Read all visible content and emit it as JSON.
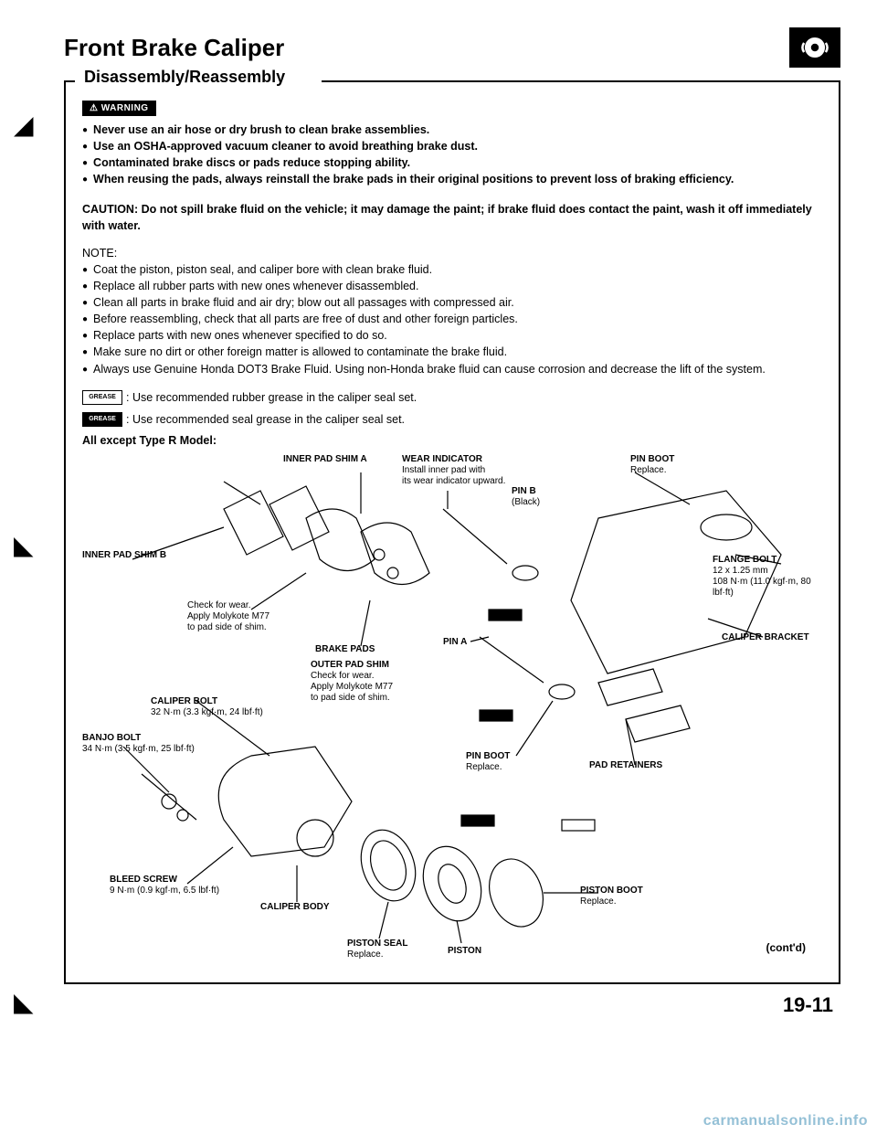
{
  "header": {
    "title": "Front Brake Caliper",
    "section_label": "Disassembly/Reassembly"
  },
  "warning": {
    "tag": "⚠ WARNING",
    "items": [
      "Never use an air hose or dry brush to clean brake assemblies.",
      "Use an OSHA-approved vacuum cleaner to avoid breathing brake dust.",
      "Contaminated brake discs or pads reduce stopping ability.",
      "When reusing the pads, always reinstall the brake pads in their original positions to prevent loss of braking efficiency."
    ]
  },
  "caution": "CAUTION: Do not spill brake fluid on the vehicle; it may damage the paint; if brake fluid does contact the paint, wash it off immediately with water.",
  "note_label": "NOTE:",
  "notes": [
    "Coat the piston, piston seal, and caliper bore with clean brake fluid.",
    "Replace all rubber parts with new ones whenever disassembled.",
    "Clean all parts in brake fluid and air dry; blow out all passages with compressed air.",
    "Before reassembling, check that all parts are free of dust and other foreign particles.",
    "Replace parts with new ones whenever specified to do so.",
    "Make sure no dirt or other foreign matter is allowed to contaminate the brake fluid.",
    "Always use Genuine Honda DOT3 Brake Fluid. Using non-Honda brake fluid can cause corrosion and decrease the lift of the system."
  ],
  "grease": {
    "rubber": ": Use recommended rubber grease in the caliper seal set.",
    "seal": ": Use recommended seal grease in the caliper seal set."
  },
  "model_label": "All except Type R Model:",
  "diagram": {
    "labels": {
      "inner_pad_shim_a": "INNER PAD SHIM A",
      "inner_pad_shim_b": "INNER PAD SHIM B",
      "wear_indicator": "WEAR INDICATOR",
      "wear_indicator_sub": "Install inner pad with\nits wear indicator upward.",
      "pin_b": "PIN B",
      "pin_b_sub": "(Black)",
      "pin_boot_top": "PIN BOOT",
      "pin_boot_top_sub": "Replace.",
      "flange_bolt": "FLANGE BOLT",
      "flange_bolt_sub": "12 x 1.25 mm\n108 N·m (11.0 kgf·m, 80 lbf·ft)",
      "caliper_bracket": "CALIPER BRACKET",
      "check_wear": "Check for wear.\nApply Molykote M77\nto pad side of shim.",
      "brake_pads": "BRAKE PADS",
      "pin_a": "PIN A",
      "outer_pad_shim": "OUTER PAD SHIM",
      "outer_pad_shim_sub": "Check for wear.\nApply Molykote M77\nto pad side of shim.",
      "caliper_bolt": "CALIPER BOLT",
      "caliper_bolt_sub": "32 N·m (3.3 kgf·m, 24 lbf·ft)",
      "banjo_bolt": "BANJO BOLT",
      "banjo_bolt_sub": "34 N·m (3.5 kgf·m, 25 lbf·ft)",
      "pin_boot_mid": "PIN BOOT",
      "pin_boot_mid_sub": "Replace.",
      "pad_retainers": "PAD RETAINERS",
      "bleed_screw": "BLEED SCREW",
      "bleed_screw_sub": "9 N·m (0.9 kgf·m, 6.5 lbf·ft)",
      "caliper_body": "CALIPER BODY",
      "piston_seal": "PISTON SEAL",
      "piston_seal_sub": "Replace.",
      "piston": "PISTON",
      "piston_boot": "PISTON BOOT",
      "piston_boot_sub": "Replace."
    },
    "contd": "(cont'd)"
  },
  "page_number": "19-11",
  "watermark": "carmanualsonline.info",
  "style": {
    "page_bg": "#ffffff",
    "text_color": "#000000",
    "icon_bg": "#000000",
    "watermark_color": "rgba(60,140,180,0.55)",
    "title_fontsize": 26,
    "body_fontsize": 12.5,
    "label_fontsize": 10,
    "pagenum_fontsize": 22
  }
}
